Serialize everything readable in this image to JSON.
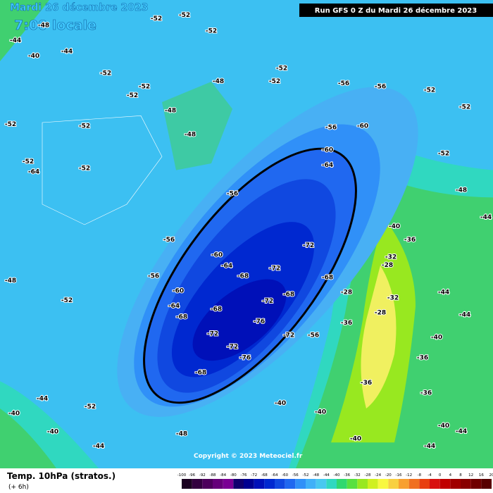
{
  "header": {
    "date": "Mardi 26 décembre 2023",
    "time": "7:00 locale",
    "run": "Run GFS 0 Z du Mardi 26 décembre 2023"
  },
  "footer": {
    "title": "Temp. 10hPa (stratos.)",
    "lead": "(+ 6h)",
    "copyright": "Copyright © 2023 Meteociel.fr"
  },
  "scale": {
    "labels": [
      -100,
      -96,
      -92,
      -88,
      -84,
      -80,
      -76,
      -72,
      -68,
      -64,
      -60,
      -56,
      -52,
      -48,
      -44,
      -40,
      -36,
      -32,
      -28,
      -24,
      -20,
      -16,
      -12,
      -8,
      -4,
      0,
      4,
      8,
      12,
      16,
      20
    ],
    "colors": [
      "#1a0020",
      "#33003f",
      "#4d005c",
      "#66007a",
      "#7a0094",
      "#10006e",
      "#000090",
      "#0010b8",
      "#0028d0",
      "#1048e0",
      "#2068f0",
      "#3090f8",
      "#40b0f8",
      "#48c8f0",
      "#30d8c0",
      "#30d870",
      "#58e040",
      "#98e820",
      "#d0f020",
      "#f8f840",
      "#f8d040",
      "#f8a030",
      "#f07020",
      "#e84010",
      "#d81010",
      "#c00000",
      "#a00000",
      "#880000",
      "#700000",
      "#580000"
    ]
  },
  "map": {
    "labels": [
      -52,
      -52,
      -52,
      -44,
      -40,
      -44,
      -48,
      -52,
      -52,
      -52,
      -52,
      -52,
      -52,
      -64,
      -52,
      -48,
      -48,
      -48,
      -52,
      -52,
      -56,
      -56,
      -52,
      -52,
      -60,
      -56,
      -60,
      -64,
      -56,
      -56,
      -56,
      -60,
      -64,
      -68,
      -72,
      -72,
      -68,
      -72,
      -68,
      -60,
      -64,
      -68,
      -68,
      -76,
      -72,
      -72,
      -72,
      -76,
      -68,
      -56,
      -52,
      -48,
      -52,
      -44,
      -40,
      -40,
      -44,
      -40,
      -40,
      -36,
      -36,
      -40,
      -44,
      -44,
      -40,
      -36,
      -32,
      -28,
      -28,
      -28,
      -32,
      -36,
      -44,
      -48,
      -52,
      -36,
      -44,
      -40,
      -48,
      -44,
      -40
    ]
  }
}
